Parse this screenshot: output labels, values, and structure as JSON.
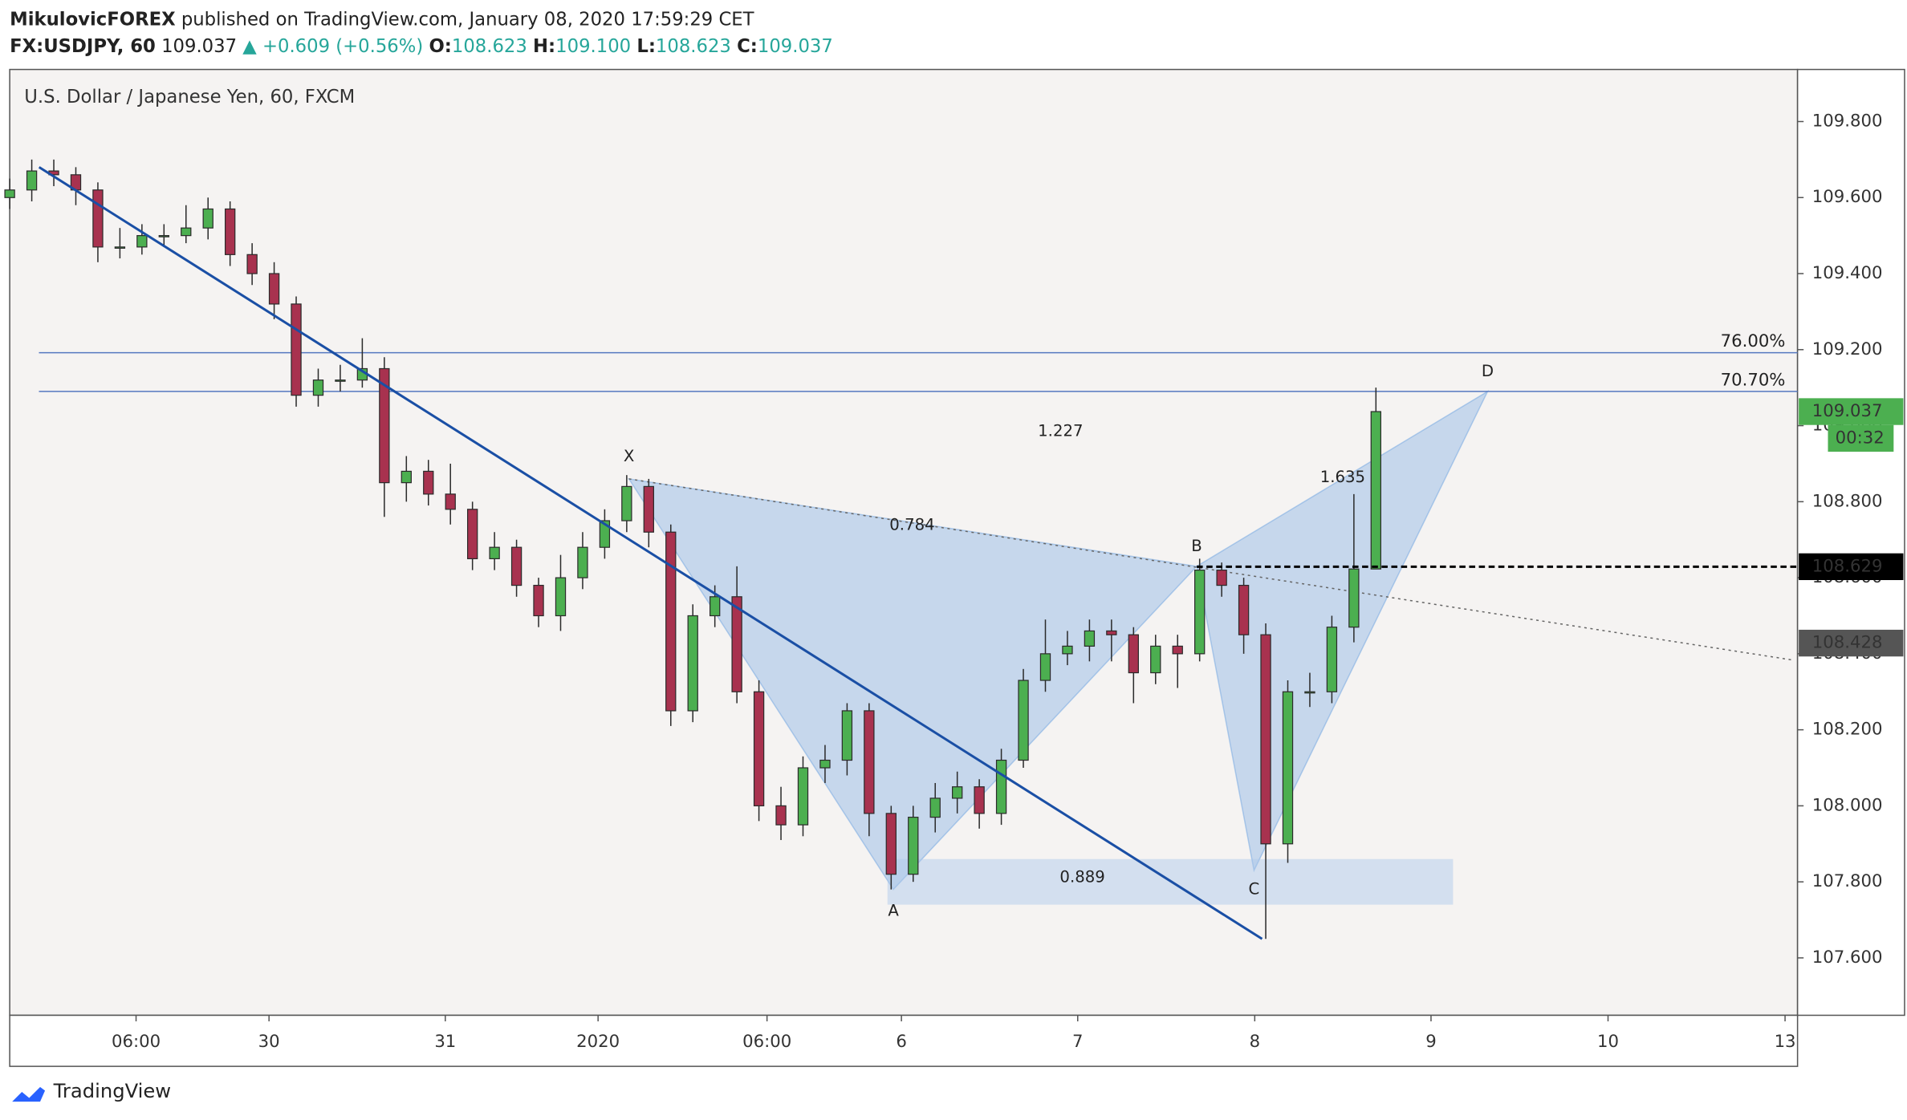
{
  "header": {
    "author": "MikulovicFOREX",
    "published": "published on TradingView.com, January 08, 2020 17:59:29 CET",
    "symbol": "FX:USDJPY, 60",
    "price": "109.037",
    "change": "▲ +0.609 (+0.56%)",
    "ohlc": [
      {
        "label": "O:",
        "value": "108.623"
      },
      {
        "label": "H:",
        "value": "109.100"
      },
      {
        "label": "L:",
        "value": "108.623"
      },
      {
        "label": "C:",
        "value": "109.037"
      }
    ]
  },
  "chart_data": {
    "type": "candlestick",
    "title": "U.S. Dollar / Japanese Yen, 60, FXCM",
    "up_color": "#4caf50",
    "down_color": "#a8324f",
    "outline_color": "#2b2b2b",
    "x": [
      0,
      3,
      6,
      9,
      12,
      15,
      18,
      21,
      24,
      27,
      30,
      33,
      36,
      39,
      42,
      45,
      48,
      51,
      54,
      57,
      60,
      63,
      66,
      69,
      72,
      75,
      78,
      81,
      84,
      87,
      90,
      93,
      96,
      99,
      102,
      105,
      108,
      111,
      114,
      117,
      120,
      123,
      126,
      129,
      132,
      135,
      138,
      141,
      144,
      147,
      150,
      153,
      156,
      159,
      162,
      165,
      168,
      171,
      174,
      177,
      180,
      183,
      186
    ],
    "candles": [
      [
        109.6,
        109.65,
        109.57,
        109.62
      ],
      [
        109.62,
        109.7,
        109.59,
        109.67
      ],
      [
        109.67,
        109.7,
        109.63,
        109.66
      ],
      [
        109.66,
        109.68,
        109.58,
        109.62
      ],
      [
        109.62,
        109.64,
        109.43,
        109.47
      ],
      [
        109.47,
        109.52,
        109.44,
        109.47
      ],
      [
        109.47,
        109.53,
        109.45,
        109.5
      ],
      [
        109.5,
        109.53,
        109.47,
        109.5
      ],
      [
        109.5,
        109.58,
        109.48,
        109.52
      ],
      [
        109.52,
        109.6,
        109.49,
        109.57
      ],
      [
        109.57,
        109.59,
        109.42,
        109.45
      ],
      [
        109.45,
        109.48,
        109.37,
        109.4
      ],
      [
        109.4,
        109.43,
        109.28,
        109.32
      ],
      [
        109.32,
        109.34,
        109.05,
        109.08
      ],
      [
        109.08,
        109.15,
        109.05,
        109.12
      ],
      [
        109.12,
        109.16,
        109.09,
        109.12
      ],
      [
        109.12,
        109.23,
        109.1,
        109.15
      ],
      [
        109.15,
        109.18,
        108.76,
        108.85
      ],
      [
        108.85,
        108.92,
        108.8,
        108.88
      ],
      [
        108.88,
        108.91,
        108.79,
        108.82
      ],
      [
        108.82,
        108.9,
        108.74,
        108.78
      ],
      [
        108.78,
        108.8,
        108.62,
        108.65
      ],
      [
        108.65,
        108.72,
        108.62,
        108.68
      ],
      [
        108.68,
        108.7,
        108.55,
        108.58
      ],
      [
        108.58,
        108.6,
        108.47,
        108.5
      ],
      [
        108.5,
        108.66,
        108.46,
        108.6
      ],
      [
        108.6,
        108.72,
        108.57,
        108.68
      ],
      [
        108.68,
        108.78,
        108.65,
        108.75
      ],
      [
        108.75,
        108.87,
        108.72,
        108.84
      ],
      [
        108.84,
        108.86,
        108.68,
        108.72
      ],
      [
        108.72,
        108.74,
        108.21,
        108.25
      ],
      [
        108.25,
        108.53,
        108.22,
        108.5
      ],
      [
        108.5,
        108.58,
        108.47,
        108.55
      ],
      [
        108.55,
        108.63,
        108.27,
        108.3
      ],
      [
        108.3,
        108.33,
        107.96,
        108.0
      ],
      [
        108.0,
        108.05,
        107.91,
        107.95
      ],
      [
        107.95,
        108.13,
        107.92,
        108.1
      ],
      [
        108.1,
        108.16,
        108.06,
        108.12
      ],
      [
        108.12,
        108.27,
        108.08,
        108.25
      ],
      [
        108.25,
        108.27,
        107.92,
        107.98
      ],
      [
        107.98,
        108.0,
        107.78,
        107.82
      ],
      [
        107.82,
        108.0,
        107.8,
        107.97
      ],
      [
        107.97,
        108.06,
        107.93,
        108.02
      ],
      [
        108.02,
        108.09,
        107.98,
        108.05
      ],
      [
        108.05,
        108.07,
        107.94,
        107.98
      ],
      [
        107.98,
        108.15,
        107.95,
        108.12
      ],
      [
        108.12,
        108.36,
        108.1,
        108.33
      ],
      [
        108.33,
        108.49,
        108.3,
        108.4
      ],
      [
        108.4,
        108.46,
        108.37,
        108.42
      ],
      [
        108.42,
        108.49,
        108.38,
        108.46
      ],
      [
        108.46,
        108.49,
        108.38,
        108.45
      ],
      [
        108.45,
        108.47,
        108.27,
        108.35
      ],
      [
        108.35,
        108.45,
        108.32,
        108.42
      ],
      [
        108.42,
        108.45,
        108.31,
        108.4
      ],
      [
        108.4,
        108.65,
        108.38,
        108.62
      ],
      [
        108.62,
        108.64,
        108.55,
        108.58
      ],
      [
        108.58,
        108.6,
        108.4,
        108.45
      ],
      [
        108.45,
        108.48,
        107.65,
        107.9
      ],
      [
        107.9,
        108.33,
        107.85,
        108.3
      ],
      [
        108.3,
        108.35,
        108.26,
        108.3
      ],
      [
        108.3,
        108.5,
        108.27,
        108.47
      ],
      [
        108.47,
        108.82,
        108.43,
        108.623
      ],
      [
        108.623,
        109.1,
        108.623,
        109.037
      ]
    ],
    "xlim": [
      0,
      243.4
    ],
    "xticks": [
      {
        "value": 17.2,
        "label": "06:00"
      },
      {
        "value": 35.3,
        "label": "30"
      },
      {
        "value": 59.3,
        "label": "31"
      },
      {
        "value": 80.1,
        "label": "2020"
      },
      {
        "value": 103.1,
        "label": "06:00"
      },
      {
        "value": 121.4,
        "label": "6"
      },
      {
        "value": 145.4,
        "label": "7"
      },
      {
        "value": 169.5,
        "label": "8"
      },
      {
        "value": 193.5,
        "label": "9"
      },
      {
        "value": 217.6,
        "label": "10"
      },
      {
        "value": 241.7,
        "label": "13"
      }
    ],
    "ylim": [
      107.449,
      109.937
    ],
    "yticks": [
      {
        "value": 107.6,
        "label": "107.600"
      },
      {
        "value": 107.8,
        "label": "107.800"
      },
      {
        "value": 108.0,
        "label": "108.000"
      },
      {
        "value": 108.2,
        "label": "108.200"
      },
      {
        "value": 108.4,
        "label": "108.400"
      },
      {
        "value": 108.6,
        "label": "108.600"
      },
      {
        "value": 108.8,
        "label": "108.800"
      },
      {
        "value": 109.0,
        "label": "109.000"
      },
      {
        "value": 109.2,
        "label": "109.200"
      },
      {
        "value": 109.4,
        "label": "109.400"
      },
      {
        "value": 109.6,
        "label": "109.600"
      },
      {
        "value": 109.8,
        "label": "109.800"
      }
    ],
    "fib_levels": [
      {
        "value": 109.192,
        "label": "76.00%"
      },
      {
        "value": 109.09,
        "label": "70.70%"
      }
    ],
    "trendline": {
      "x": [
        4,
        170.5
      ],
      "y": [
        109.68,
        107.65
      ]
    },
    "dotted_line": {
      "x": [
        84.3,
        242.9
      ],
      "y": [
        108.86,
        108.383
      ]
    },
    "zone": {
      "x": [
        119.5,
        196.5
      ],
      "y": [
        107.86,
        107.74
      ]
    },
    "pattern": {
      "labels": [
        "X",
        "A",
        "B",
        "C",
        "D"
      ],
      "x": [
        84.3,
        120.3,
        161.6,
        169.4,
        201.2
      ],
      "y": [
        108.86,
        107.78,
        108.63,
        107.83,
        109.09
      ]
    },
    "ratios": [
      0.784,
      1.227,
      1.635,
      0.889
    ],
    "last_price": 109.037,
    "countdown": "00:32",
    "marker_price": 108.629,
    "other_price": 108.428
  },
  "footer": {
    "brand": "TradingView"
  }
}
